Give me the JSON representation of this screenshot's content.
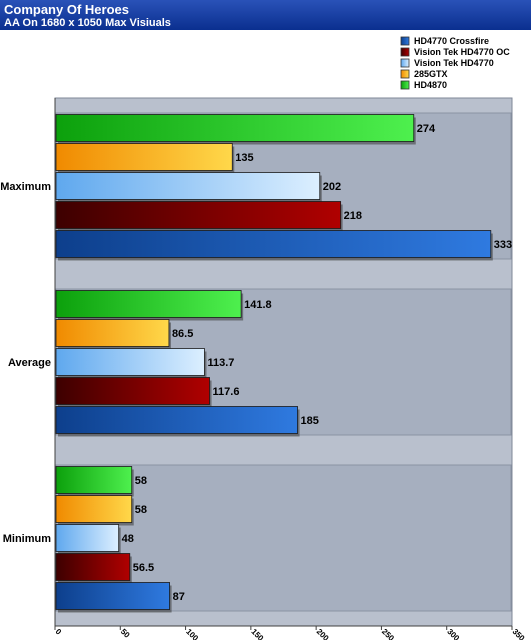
{
  "chart_data": {
    "type": "bar",
    "orientation": "horizontal",
    "title": "Company Of Heroes",
    "subtitle": "AA On 1680 x 1050 Max Visiuals",
    "categories": [
      "Maximum",
      "Average",
      "Minimum"
    ],
    "series": [
      {
        "name": "HD4770 Crossfire",
        "color": "#1f5fb8",
        "values": [
          333,
          185,
          87
        ],
        "labels": [
          "333",
          "185",
          "87"
        ]
      },
      {
        "name": "Vision Tek HD4770 OC",
        "color": "#8b0000",
        "values": [
          218,
          117.6,
          56.5
        ],
        "labels": [
          "218",
          "117.6",
          "56.5"
        ]
      },
      {
        "name": "Vision Tek HD4770",
        "color": "#a8d0f5",
        "values": [
          202,
          113.7,
          48
        ],
        "labels": [
          "202",
          "113.7",
          "48"
        ]
      },
      {
        "name": "285GTX",
        "color": "#f5a800",
        "values": [
          135,
          86.5,
          58
        ],
        "labels": [
          "135",
          "86.5",
          "58"
        ]
      },
      {
        "name": "HD4870",
        "color": "#1ec81e",
        "values": [
          274,
          141.8,
          58
        ],
        "labels": [
          "274",
          "141.8",
          "58"
        ]
      }
    ],
    "xlim": [
      0,
      350
    ],
    "xticks": [
      0,
      50,
      100,
      150,
      200,
      250,
      300,
      350
    ],
    "xtick_labels": [
      "0",
      "50",
      "100",
      "150",
      "200",
      "250",
      "300",
      "350"
    ],
    "grid": false,
    "legend": "top-right"
  }
}
